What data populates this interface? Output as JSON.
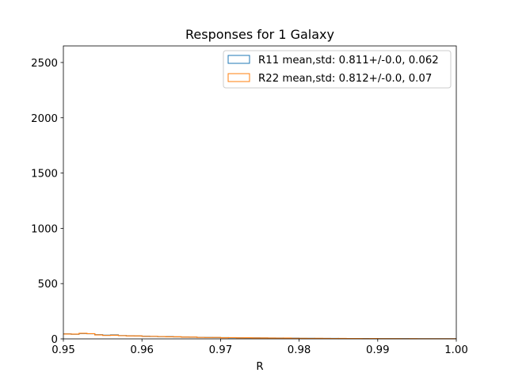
{
  "chart_data": {
    "type": "histogram",
    "title": "Responses for 1 Galaxy",
    "xlabel": "R",
    "ylabel": "",
    "xlim": [
      0.95,
      1.0
    ],
    "ylim": [
      0,
      2650
    ],
    "xticks": [
      0.95,
      0.96,
      0.97,
      0.98,
      0.99,
      1.0
    ],
    "xtick_labels": [
      "0.95",
      "0.96",
      "0.97",
      "0.98",
      "0.99",
      "1.00"
    ],
    "yticks": [
      0,
      500,
      1000,
      1500,
      2000,
      2500
    ],
    "ytick_labels": [
      "0",
      "500",
      "1000",
      "1500",
      "2000",
      "2500"
    ],
    "grid": false,
    "legend_position": "top-right",
    "bin_edges": [
      0.95,
      0.951,
      0.952,
      0.953,
      0.954,
      0.955,
      0.956,
      0.957,
      0.958,
      0.959,
      0.96,
      0.961,
      0.962,
      0.963,
      0.964,
      0.965,
      0.966,
      0.967,
      0.968,
      0.969,
      0.97,
      0.971,
      0.972,
      0.973,
      0.974,
      0.975,
      0.976,
      0.977,
      0.978,
      0.979,
      0.98,
      0.981,
      0.982,
      0.983,
      0.984,
      0.985,
      0.986,
      0.987,
      0.988,
      0.989,
      0.99,
      0.991,
      0.992,
      0.993,
      0.994,
      0.995,
      0.996,
      0.997,
      0.998,
      0.999,
      1.0
    ],
    "series": [
      {
        "name": "R11 mean,std: 0.811+/-0.0, 0.062",
        "color": "#1f77b4",
        "values": [
          45,
          42,
          48,
          46,
          38,
          33,
          36,
          30,
          28,
          26,
          24,
          22,
          20,
          21,
          18,
          17,
          15,
          14,
          13,
          12,
          11,
          10,
          10,
          9,
          9,
          8,
          7,
          7,
          6,
          6,
          5,
          5,
          4,
          4,
          4,
          3,
          3,
          3,
          3,
          2,
          2,
          2,
          2,
          2,
          1,
          1,
          1,
          1,
          1,
          1
        ]
      },
      {
        "name": "R22 mean,std: 0.812+/-0.0, 0.07",
        "color": "#ff7f0e",
        "values": [
          44,
          43,
          50,
          47,
          36,
          31,
          33,
          29,
          27,
          27,
          23,
          23,
          21,
          19,
          19,
          16,
          16,
          13,
          12,
          13,
          10,
          11,
          9,
          10,
          8,
          8,
          7,
          6,
          7,
          5,
          5,
          4,
          5,
          4,
          3,
          4,
          3,
          3,
          2,
          3,
          2,
          2,
          2,
          1,
          2,
          1,
          1,
          1,
          1,
          1
        ]
      }
    ]
  }
}
